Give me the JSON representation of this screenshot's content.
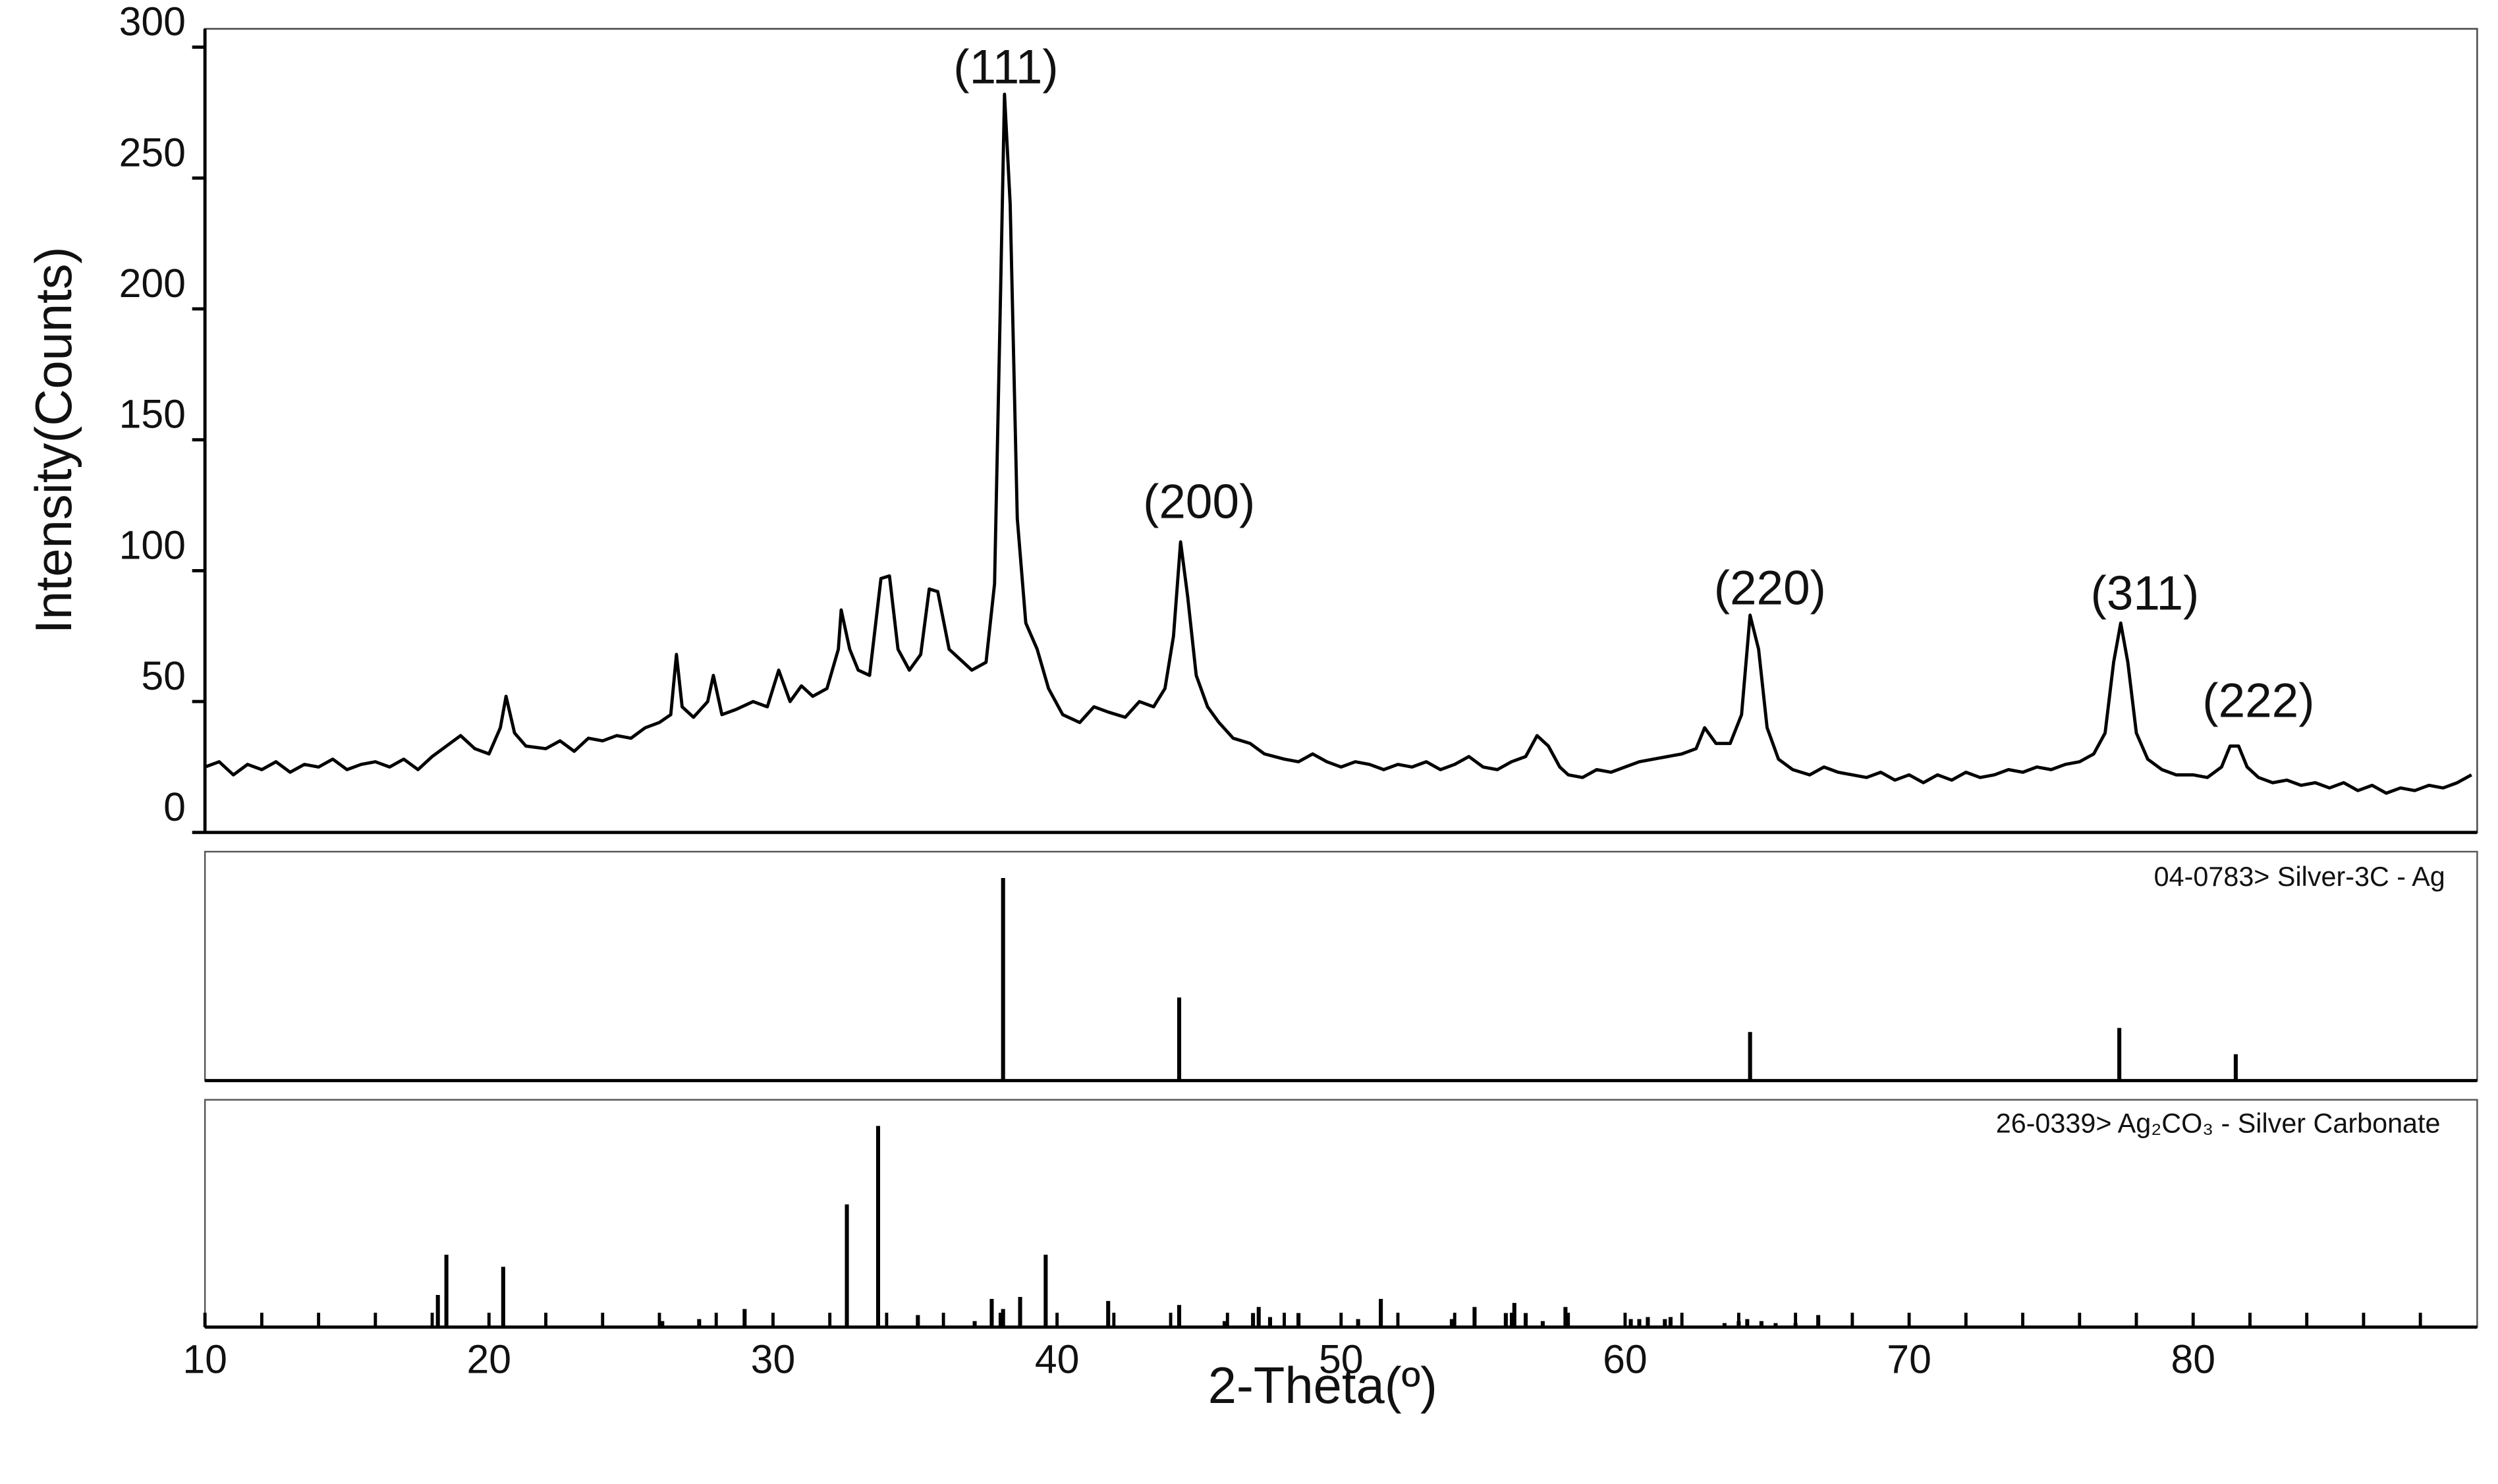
{
  "chart_data": [
    {
      "type": "line",
      "x_label": "2-Theta(º)",
      "y_label": "Intensity(Counts)",
      "xlim": [
        10,
        90
      ],
      "ylim": [
        0,
        307
      ],
      "xticks": [
        10,
        20,
        30,
        40,
        50,
        60,
        70,
        80
      ],
      "xminorticks": [
        12,
        14,
        16,
        18,
        22,
        24,
        26,
        28,
        32,
        34,
        36,
        38,
        42,
        44,
        46,
        48,
        52,
        54,
        56,
        58,
        62,
        64,
        66,
        68,
        72,
        74,
        76,
        78,
        82,
        84,
        86,
        88
      ],
      "yticks": [
        0,
        50,
        100,
        150,
        200,
        250,
        300
      ],
      "color": "#000000",
      "x": [
        10,
        10.5,
        11,
        11.5,
        12,
        12.5,
        13,
        13.5,
        14,
        14.5,
        15,
        15.5,
        16,
        16.5,
        17,
        17.5,
        18,
        18.5,
        19,
        19.5,
        20,
        20.4,
        20.6,
        20.9,
        21.3,
        22,
        22.5,
        23,
        23.5,
        24,
        24.5,
        25,
        25.5,
        26,
        26.4,
        26.6,
        26.8,
        27.2,
        27.7,
        27.9,
        28.2,
        28.7,
        29.3,
        29.8,
        30.2,
        30.6,
        31,
        31.4,
        31.9,
        32.3,
        32.4,
        32.7,
        33,
        33.4,
        33.8,
        34.1,
        34.4,
        34.8,
        35.2,
        35.5,
        35.8,
        36.2,
        36.6,
        37,
        37.5,
        37.8,
        38,
        38.15,
        38.35,
        38.6,
        38.9,
        39.3,
        39.7,
        40.2,
        40.8,
        41.3,
        41.8,
        42.4,
        42.9,
        43.4,
        43.8,
        44.1,
        44.35,
        44.6,
        44.9,
        45.3,
        45.7,
        46.2,
        46.8,
        47.3,
        48,
        48.5,
        49,
        49.5,
        50,
        50.5,
        51,
        51.5,
        52,
        52.5,
        53,
        53.5,
        54,
        54.5,
        55,
        55.5,
        56,
        56.5,
        56.9,
        57.3,
        57.7,
        58,
        58.5,
        59,
        59.5,
        60,
        60.5,
        61,
        61.5,
        62,
        62.5,
        62.8,
        63.2,
        63.7,
        64.1,
        64.4,
        64.7,
        65,
        65.4,
        65.9,
        66.5,
        67,
        67.5,
        68,
        68.5,
        69,
        69.5,
        70,
        70.5,
        71,
        71.5,
        72,
        72.5,
        73,
        73.5,
        74,
        74.5,
        75,
        75.5,
        76,
        76.5,
        76.9,
        77.2,
        77.45,
        77.7,
        78,
        78.4,
        78.9,
        79.4,
        80,
        80.5,
        81,
        81.3,
        81.6,
        81.9,
        82.3,
        82.8,
        83.3,
        83.8,
        84.3,
        84.8,
        85.3,
        85.8,
        86.3,
        86.8,
        87.3,
        87.8,
        88.3,
        88.8,
        89.3,
        89.8
      ],
      "values": [
        25,
        27,
        22,
        26,
        24,
        27,
        23,
        26,
        25,
        28,
        24,
        26,
        27,
        25,
        28,
        24,
        29,
        33,
        37,
        32,
        30,
        40,
        52,
        38,
        33,
        32,
        35,
        31,
        36,
        35,
        37,
        36,
        40,
        42,
        45,
        68,
        48,
        44,
        50,
        60,
        45,
        47,
        50,
        48,
        62,
        50,
        56,
        52,
        55,
        70,
        85,
        70,
        62,
        60,
        97,
        98,
        70,
        62,
        68,
        93,
        92,
        70,
        66,
        62,
        65,
        95,
        200,
        282,
        240,
        120,
        80,
        70,
        55,
        45,
        42,
        48,
        46,
        44,
        50,
        48,
        55,
        75,
        111,
        90,
        60,
        48,
        42,
        36,
        34,
        30,
        28,
        27,
        30,
        27,
        25,
        27,
        26,
        24,
        26,
        25,
        27,
        24,
        26,
        29,
        25,
        24,
        27,
        29,
        37,
        33,
        25,
        22,
        21,
        24,
        23,
        25,
        27,
        28,
        29,
        30,
        32,
        40,
        34,
        34,
        45,
        83,
        70,
        40,
        28,
        24,
        22,
        25,
        23,
        22,
        21,
        23,
        20,
        22,
        19,
        22,
        20,
        23,
        21,
        22,
        24,
        23,
        25,
        24,
        26,
        27,
        30,
        38,
        65,
        80,
        65,
        38,
        28,
        24,
        22,
        22,
        21,
        25,
        33,
        33,
        25,
        21,
        19,
        20,
        18,
        19,
        17,
        19,
        16,
        18,
        15,
        17,
        16,
        18,
        17,
        19,
        22
      ],
      "annotations": [
        {
          "text": "(111)",
          "x": 38.2,
          "y": 291
        },
        {
          "text": "(200)",
          "x": 45.0,
          "y": 125
        },
        {
          "text": "(220)",
          "x": 65.1,
          "y": 92
        },
        {
          "text": "(311)",
          "x": 78.3,
          "y": 90
        },
        {
          "text": "(222)",
          "x": 82.3,
          "y": 49
        }
      ]
    },
    {
      "type": "stick",
      "label": "04-0783> Silver-3C - Ag",
      "ylim": [
        0,
        113
      ],
      "color": "#000000",
      "x": [
        38.1,
        44.3,
        64.4,
        77.4,
        81.5
      ],
      "values": [
        100,
        41,
        24,
        26,
        13
      ]
    },
    {
      "type": "stick",
      "label": "26-0339> Ag₂CO₃ - Silver Carbonate",
      "ylim": [
        0,
        113
      ],
      "color": "#000000",
      "x": [
        18.2,
        18.5,
        20.5,
        26.1,
        27.4,
        29.0,
        32.6,
        33.7,
        35.1,
        37.1,
        37.7,
        38.1,
        38.7,
        39.6,
        41.8,
        44.3,
        45.9,
        46.9,
        47.1,
        47.5,
        48.5,
        50.6,
        51.4,
        53.9,
        54.7,
        55.8,
        56.1,
        56.5,
        57.1,
        57.9,
        60.2,
        60.5,
        60.8,
        61.4,
        61.6,
        63.5,
        64.0,
        64.3,
        64.8,
        65.3,
        66.0,
        66.8
      ],
      "values": [
        16,
        36,
        30,
        3,
        4,
        9,
        61,
        100,
        6,
        3,
        14,
        9,
        15,
        36,
        13,
        11,
        3,
        7,
        10,
        5,
        7,
        4,
        14,
        4,
        10,
        7,
        12,
        7,
        3,
        10,
        4,
        4,
        5,
        4,
        5,
        2,
        3,
        4,
        3,
        2,
        2,
        6
      ]
    }
  ]
}
